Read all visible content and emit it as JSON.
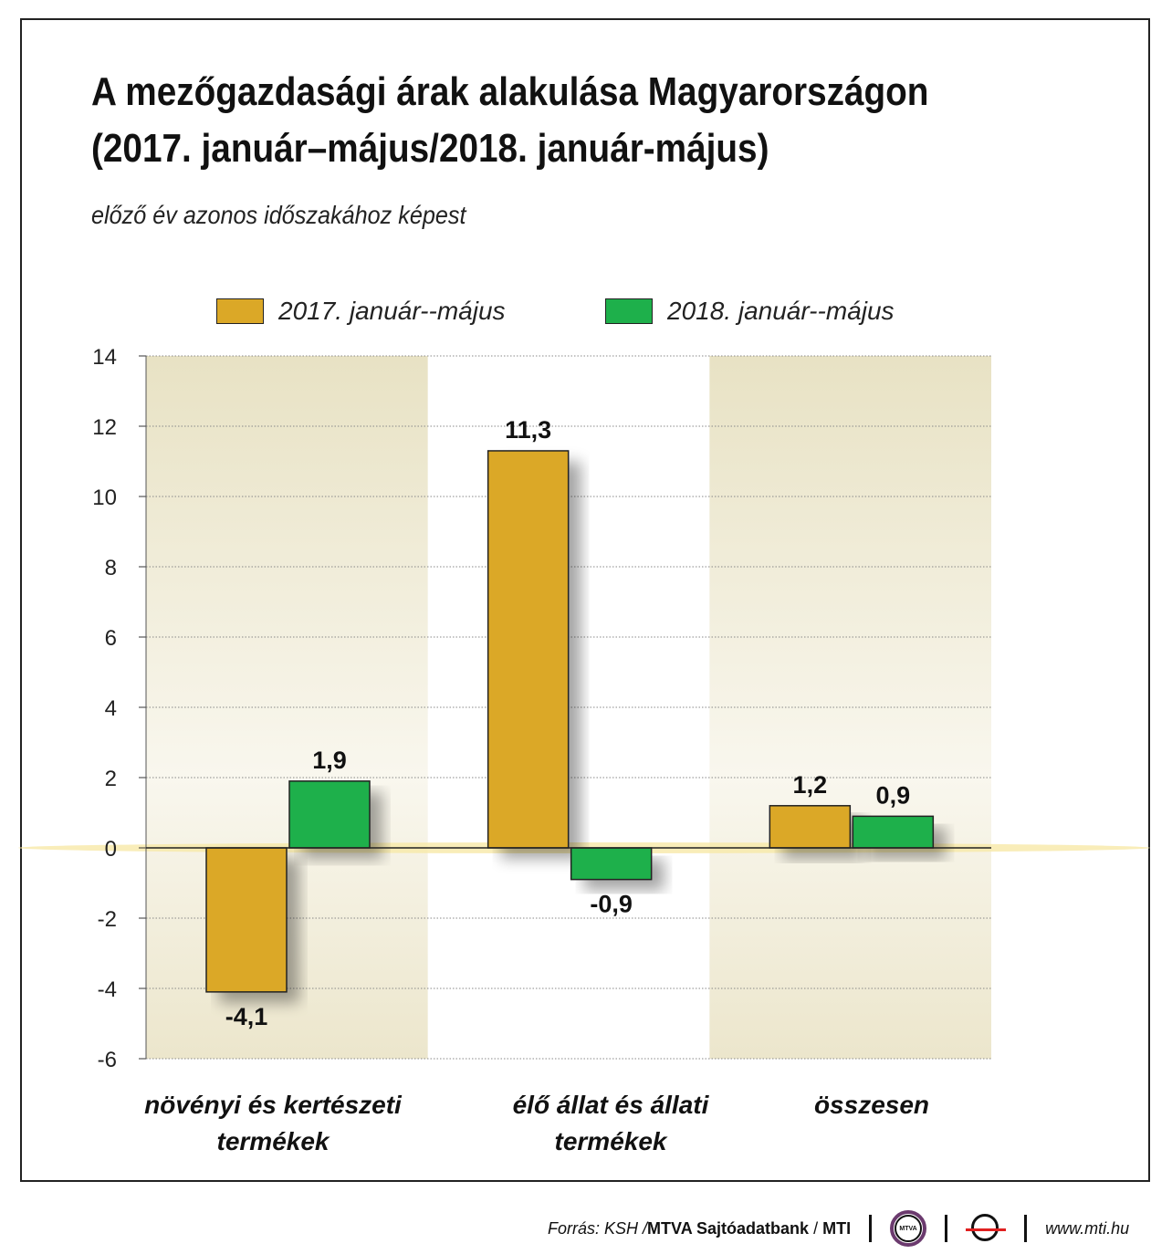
{
  "title_lines": [
    "A mezőgazdasági árak alakulása Magyarországon",
    "(2017. január–május/2018. január-május)"
  ],
  "subtitle": "előző év azonos időszakához képest",
  "chart_data": {
    "type": "bar",
    "categories": [
      "növényi és kertészeti termékek",
      "élő állat és állati termékek",
      "összesen"
    ],
    "category_lines": [
      [
        "növényi és kertészeti",
        "termékek"
      ],
      [
        "élő állat és állati",
        "termékek"
      ],
      [
        "összesen"
      ]
    ],
    "series": [
      {
        "name": "2017. január--május",
        "values": [
          -4.1,
          11.3,
          1.2
        ],
        "labels": [
          "-4,1",
          "11,3",
          "1,2"
        ],
        "color": "#dba827"
      },
      {
        "name": "2018. január--május",
        "values": [
          1.9,
          -0.9,
          0.9
        ],
        "labels": [
          "1,9",
          "-0,9",
          "0,9"
        ],
        "color": "#1eb04b"
      }
    ],
    "ylim": [
      -6,
      14
    ],
    "yticks": [
      14,
      12,
      10,
      8,
      6,
      4,
      2,
      0,
      -2,
      -4,
      -6
    ],
    "grid": true,
    "legend": "top"
  },
  "footer": {
    "source_prefix": "Forrás: KSH / ",
    "source_bold": "MTVA Sajtóadatbank",
    "source_sep": " / ",
    "source_mti": "MTI",
    "logo1": "MTVA",
    "url": "www.mti.hu"
  }
}
